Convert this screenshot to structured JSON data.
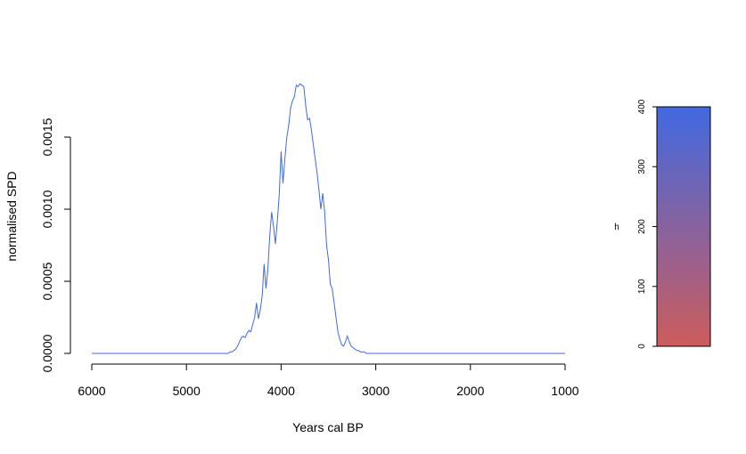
{
  "chart_data": {
    "type": "line",
    "title": "",
    "xlabel": "Years cal BP",
    "ylabel": "normalised SPD",
    "xlim": [
      6000,
      1000
    ],
    "ylim": [
      0,
      0.0018
    ],
    "x_ticks": [
      "6000",
      "5000",
      "4000",
      "3000",
      "2000",
      "1000"
    ],
    "x_tick_values": [
      6000,
      5000,
      4000,
      3000,
      2000,
      1000
    ],
    "y_ticks": [
      "0.0000",
      "0.0005",
      "0.0010",
      "0.0015"
    ],
    "y_tick_values": [
      0,
      0.0005,
      0.001,
      0.0015
    ],
    "line_color": "#4169e1",
    "series": [
      {
        "x": [
          6000,
          4560,
          4540,
          4520,
          4500,
          4480,
          4460,
          4440,
          4420,
          4400,
          4380,
          4360,
          4340,
          4320,
          4300,
          4280,
          4260,
          4240,
          4220,
          4200,
          4180,
          4160,
          4140,
          4120,
          4100,
          4080,
          4060,
          4040,
          4020,
          4000,
          3980,
          3960,
          3940,
          3920,
          3900,
          3880,
          3860,
          3840,
          3820,
          3800,
          3780,
          3760,
          3740,
          3720,
          3700,
          3680,
          3660,
          3640,
          3620,
          3600,
          3580,
          3560,
          3540,
          3520,
          3500,
          3480,
          3460,
          3440,
          3420,
          3400,
          3380,
          3360,
          3340,
          3320,
          3300,
          3280,
          3260,
          3240,
          3220,
          3200,
          3180,
          3160,
          3140,
          3120,
          3100,
          3080,
          1000
        ],
        "y": [
          0,
          0,
          1e-05,
          1e-05,
          2e-05,
          3e-05,
          5e-05,
          8e-05,
          0.00011,
          0.00012,
          0.00011,
          0.00014,
          0.00016,
          0.00015,
          0.0002,
          0.00025,
          0.00035,
          0.00024,
          0.0003,
          0.0004,
          0.00062,
          0.00045,
          0.00058,
          0.00082,
          0.00098,
          0.00088,
          0.00076,
          0.00092,
          0.0011,
          0.0014,
          0.00118,
          0.00135,
          0.0015,
          0.00158,
          0.0017,
          0.00175,
          0.00178,
          0.00186,
          0.00185,
          0.00187,
          0.00186,
          0.00185,
          0.00172,
          0.00162,
          0.00163,
          0.00155,
          0.00145,
          0.00135,
          0.00125,
          0.00113,
          0.001,
          0.00111,
          0.00098,
          0.00075,
          0.00065,
          0.00048,
          0.00045,
          0.00035,
          0.00025,
          0.00015,
          0.0001,
          6e-05,
          5e-05,
          8e-05,
          0.00012,
          8e-05,
          5e-05,
          4e-05,
          3e-05,
          2e-05,
          2e-05,
          1e-05,
          1e-05,
          1e-05,
          0,
          0,
          0
        ]
      }
    ],
    "colorbar": {
      "label": "h",
      "ticks": [
        "0",
        "100",
        "200",
        "300",
        "400"
      ],
      "tick_values": [
        0,
        100,
        200,
        300,
        400
      ],
      "range": [
        0,
        400
      ],
      "color_low": "#cd5c5c",
      "color_high": "#4169e1"
    },
    "grid": false,
    "legend": "none"
  }
}
